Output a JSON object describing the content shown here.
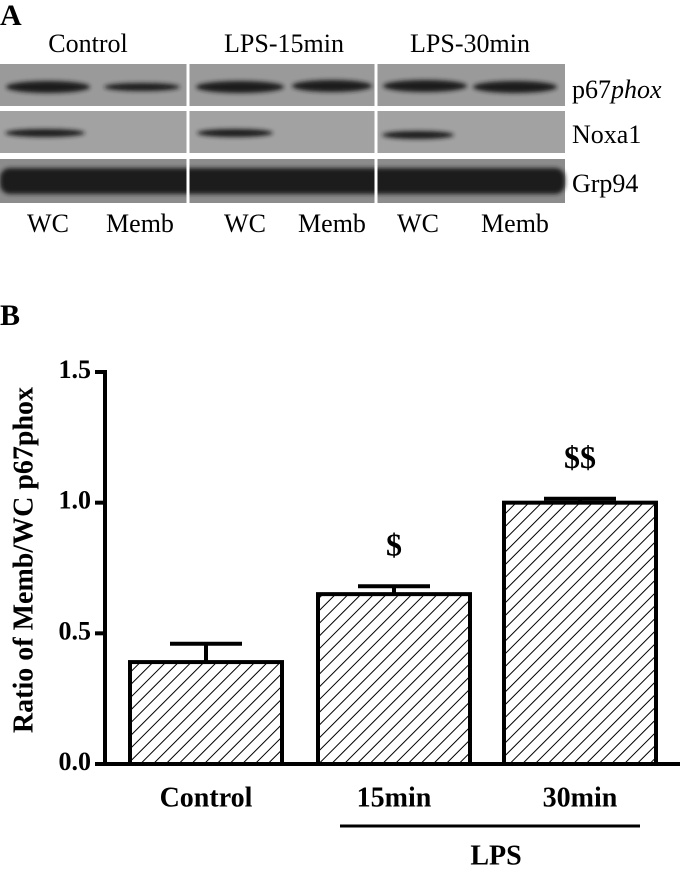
{
  "panel_a": {
    "label": "A",
    "groups": [
      "Control",
      "LPS-15min",
      "LPS-30min"
    ],
    "lanes": [
      "WC",
      "Memb",
      "WC",
      "Memb",
      "WC",
      "Memb"
    ],
    "bands": [
      {
        "prefix": "p67",
        "italic": "phox"
      },
      {
        "prefix": "Noxa1"
      },
      {
        "prefix": "Grp94"
      }
    ]
  },
  "chart_data": {
    "type": "bar",
    "label": "B",
    "categories": [
      "Control",
      "15min",
      "30min"
    ],
    "values": [
      0.39,
      0.65,
      1.0
    ],
    "errors": [
      0.07,
      0.03,
      0.015
    ],
    "annotations": [
      null,
      "$",
      "$$"
    ],
    "x_group_label": "LPS",
    "y_label": "Ratio of Memb/WC p67phox",
    "ylim": [
      0,
      1.5
    ],
    "yticks": [
      {
        "value": 0,
        "label": "0.0"
      },
      {
        "value": 0.5,
        "label": "0.5"
      },
      {
        "value": 1,
        "label": "1.0"
      },
      {
        "value": 1.5,
        "label": "1.5"
      }
    ],
    "color": "#000000"
  }
}
